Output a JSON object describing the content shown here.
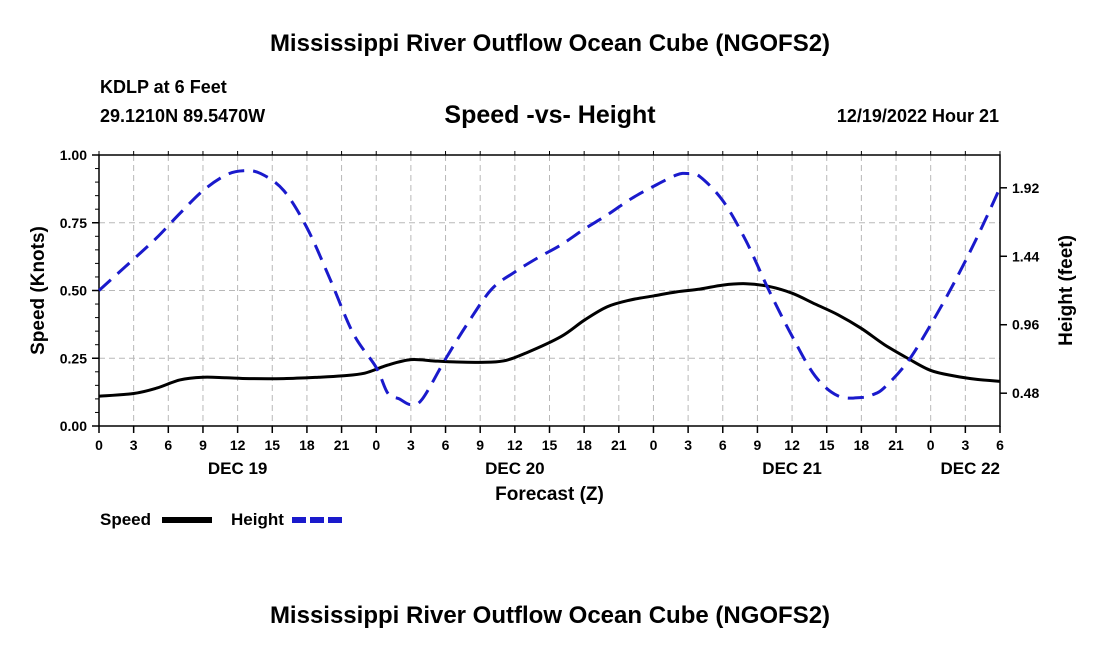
{
  "page": {
    "title_top": "Mississippi River Outflow Ocean Cube (NGOFS2)",
    "title_bottom": "Mississippi River Outflow Ocean Cube (NGOFS2)",
    "station": "KDLP at 6 Feet",
    "coords": "29.1210N  89.5470W",
    "datetime": "12/19/2022 Hour 21"
  },
  "chart_data": {
    "type": "line",
    "title": "Speed -vs- Height",
    "xlabel": "Forecast (Z)",
    "ylabel_left": "Speed (Knots)",
    "ylabel_right": "Height (feet)",
    "x_range": [
      0,
      78
    ],
    "y_left_range": [
      0,
      1.0
    ],
    "y_right_range": [
      0.25,
      2.15
    ],
    "y_left_ticks": [
      "0.00",
      "0.25",
      "0.50",
      "0.75",
      "1.00"
    ],
    "y_right_ticks": [
      "0.48",
      "0.96",
      "1.44",
      "1.92"
    ],
    "x_tick_labels": [
      "0",
      "3",
      "6",
      "9",
      "12",
      "15",
      "18",
      "21",
      "0",
      "3",
      "6",
      "9",
      "12",
      "15",
      "18",
      "21",
      "0",
      "3",
      "6",
      "9",
      "12",
      "15",
      "18",
      "21",
      "0",
      "3",
      "6"
    ],
    "day_labels": [
      {
        "label": "DEC 19",
        "hour": 12
      },
      {
        "label": "DEC 20",
        "hour": 36
      },
      {
        "label": "DEC 21",
        "hour": 60
      },
      {
        "label": "DEC 22",
        "hour": 78
      }
    ],
    "legend": [
      {
        "name": "Speed",
        "color": "#000000",
        "style": "solid"
      },
      {
        "name": "Height",
        "color": "#1a1acc",
        "style": "dashed"
      }
    ],
    "series": [
      {
        "name": "Speed",
        "axis": "left",
        "color": "#000000",
        "x": [
          0,
          3,
          5,
          7,
          9,
          11,
          13,
          16,
          19,
          21,
          23,
          25,
          27,
          29,
          31,
          33,
          35,
          37,
          40,
          42,
          44,
          46,
          48,
          50,
          52,
          54,
          56,
          58,
          60,
          62,
          64,
          66,
          68,
          70,
          72,
          74,
          76,
          78
        ],
        "y": [
          0.11,
          0.12,
          0.14,
          0.17,
          0.18,
          0.178,
          0.175,
          0.175,
          0.18,
          0.185,
          0.195,
          0.225,
          0.245,
          0.24,
          0.236,
          0.235,
          0.24,
          0.27,
          0.33,
          0.39,
          0.44,
          0.465,
          0.48,
          0.495,
          0.505,
          0.52,
          0.525,
          0.515,
          0.49,
          0.45,
          0.41,
          0.36,
          0.3,
          0.25,
          0.205,
          0.185,
          0.172,
          0.165
        ]
      },
      {
        "name": "Height",
        "axis": "right",
        "color": "#1a1acc",
        "x": [
          0,
          3,
          5,
          7,
          9,
          11,
          12.5,
          14,
          16,
          18,
          20,
          22,
          24,
          25,
          26,
          27,
          28,
          30,
          32,
          34,
          36,
          38,
          40,
          42,
          44,
          46,
          48,
          50,
          51,
          52,
          54,
          56,
          58,
          60,
          62,
          64,
          66,
          67,
          68,
          70,
          72,
          74,
          76,
          78
        ],
        "y": [
          1.2,
          1.42,
          1.57,
          1.74,
          1.9,
          2.01,
          2.04,
          2.02,
          1.9,
          1.64,
          1.28,
          0.9,
          0.66,
          0.48,
          0.44,
          0.4,
          0.44,
          0.72,
          0.98,
          1.21,
          1.33,
          1.43,
          1.52,
          1.63,
          1.73,
          1.84,
          1.93,
          2.01,
          2.02,
          2.0,
          1.83,
          1.55,
          1.2,
          0.88,
          0.6,
          0.46,
          0.45,
          0.47,
          0.52,
          0.7,
          0.96,
          1.25,
          1.57,
          1.92
        ]
      }
    ]
  }
}
